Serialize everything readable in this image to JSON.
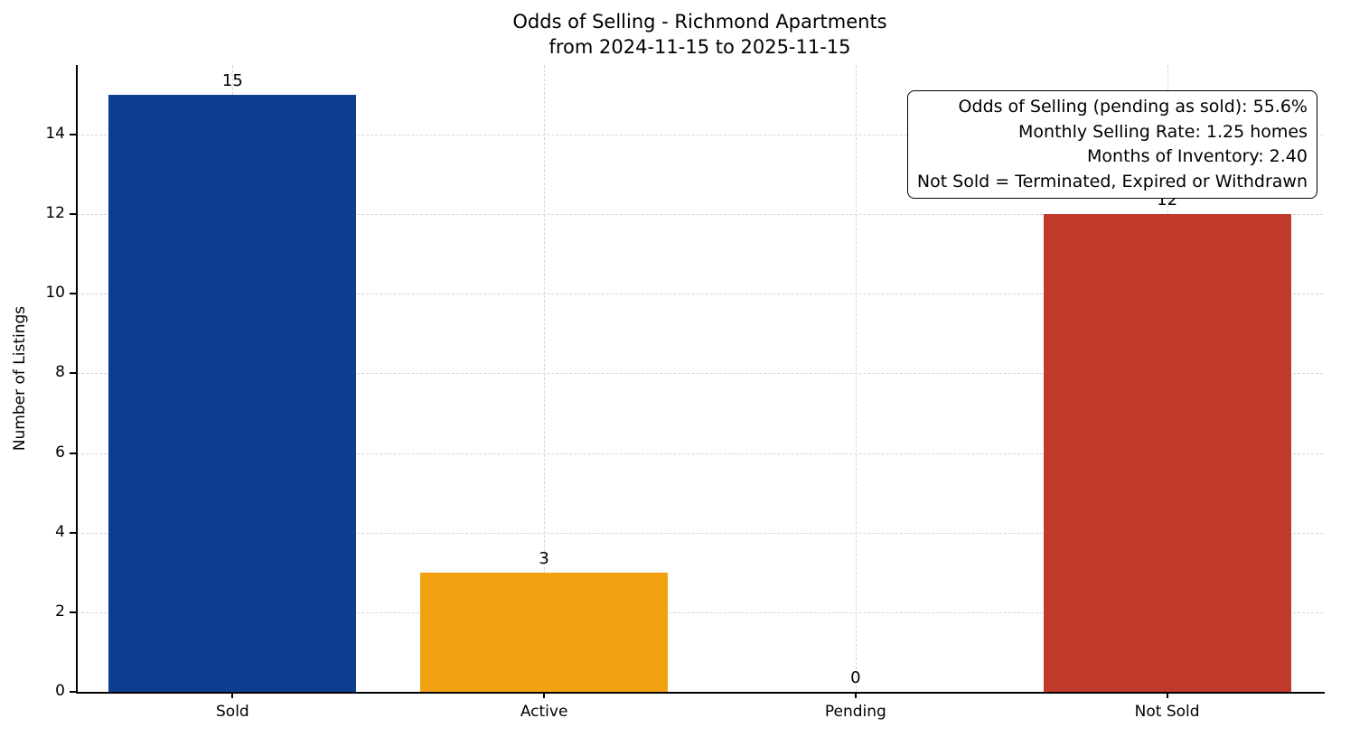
{
  "chart_data": {
    "type": "bar",
    "title": "Odds of Selling - Richmond Apartments",
    "subtitle": "from 2024-11-15 to 2025-11-15",
    "categories": [
      "Sold",
      "Active",
      "Pending",
      "Not Sold"
    ],
    "values": [
      15,
      3,
      0,
      12
    ],
    "bar_labels": [
      "15",
      "3",
      "0",
      "12"
    ],
    "bar_colors": [
      "#0e3e8f",
      "#f2a211",
      null,
      "#c0392b"
    ],
    "xlabel": "",
    "ylabel": "Number of Listings",
    "ylim": [
      0,
      15.75
    ],
    "yticks": [
      0,
      2,
      4,
      6,
      8,
      10,
      12,
      14
    ],
    "grid": "dashed",
    "legend": "none",
    "annotation": {
      "position": "top-right",
      "lines": [
        "Odds of Selling (pending as sold): 55.6%",
        "Monthly Selling Rate: 1.25 homes",
        "Months of Inventory: 2.40",
        "Not Sold = Terminated, Expired or Withdrawn"
      ]
    }
  }
}
